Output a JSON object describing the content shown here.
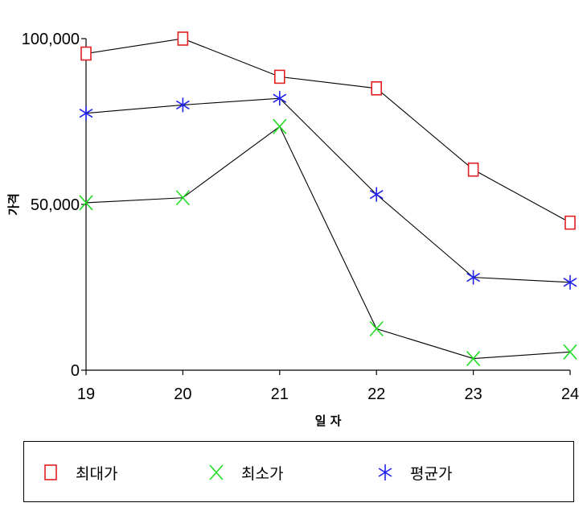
{
  "chart_data": {
    "type": "line",
    "title": "",
    "xlabel": "일 자",
    "ylabel": "가격",
    "categories": [
      "19",
      "20",
      "21",
      "22",
      "23",
      "24"
    ],
    "ylim": [
      0,
      100000
    ],
    "yticks": [
      "0",
      "50,000",
      "100,000"
    ],
    "ytick_values": [
      0,
      50000,
      100000
    ],
    "series": [
      {
        "name": "최대가",
        "marker": "square",
        "color": "#e02020",
        "values": [
          95500,
          100000,
          88500,
          85000,
          60500,
          44500
        ]
      },
      {
        "name": "최소가",
        "marker": "x",
        "color": "#22dd22",
        "values": [
          50500,
          52000,
          73500,
          12500,
          3500,
          5500
        ]
      },
      {
        "name": "평균가",
        "marker": "asterisk",
        "color": "#2222ee",
        "values": [
          77500,
          80000,
          82000,
          53000,
          28000,
          26500
        ]
      }
    ],
    "legend_position": "bottom",
    "grid": false
  }
}
